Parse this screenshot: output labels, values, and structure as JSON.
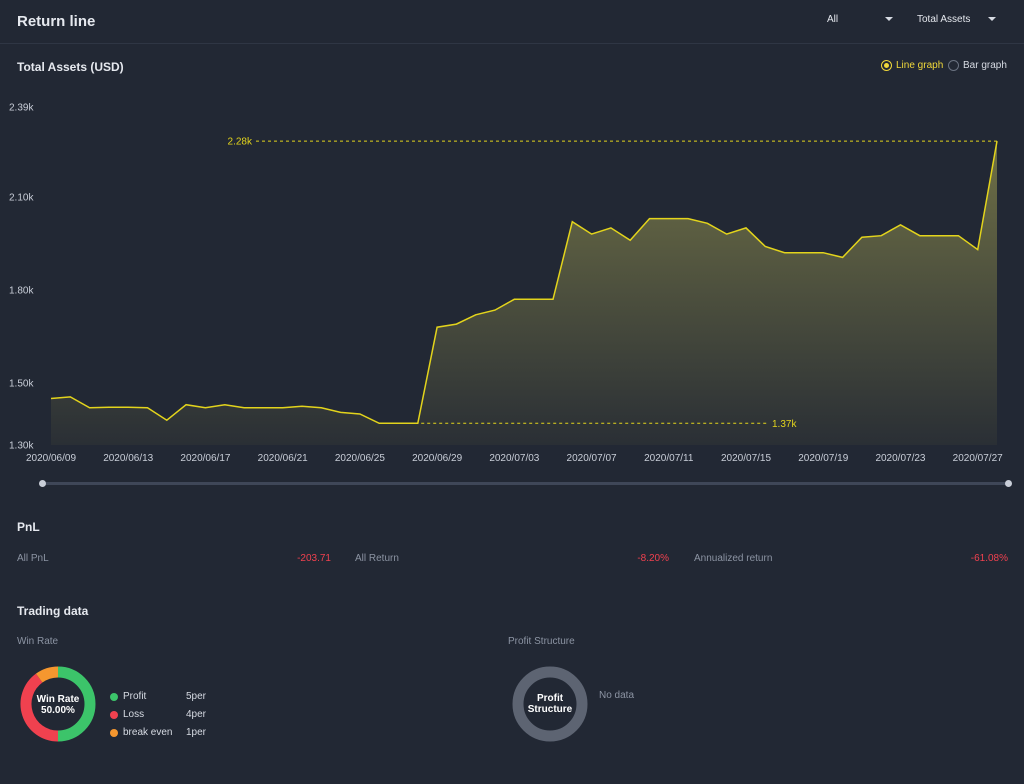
{
  "header": {
    "title": "Return line",
    "filter_period": "All",
    "filter_metric": "Total Assets"
  },
  "chart_section": {
    "title": "Total Assets (USD)",
    "view_options": [
      {
        "label": "Line graph",
        "selected": true
      },
      {
        "label": "Bar graph",
        "selected": false
      }
    ]
  },
  "chart_data": {
    "type": "area",
    "title": "",
    "xlabel": "",
    "ylabel": "",
    "ylim": [
      1.3,
      2.39
    ],
    "yticks": [
      "2.39k",
      "2.10k",
      "1.80k",
      "1.50k",
      "1.30k"
    ],
    "ytick_values": [
      2.39,
      2.1,
      1.8,
      1.5,
      1.3
    ],
    "xtick_labels": [
      "2020/06/09",
      "2020/06/13",
      "2020/06/17",
      "2020/06/21",
      "2020/06/25",
      "2020/06/29",
      "2020/07/03",
      "2020/07/07",
      "2020/07/11",
      "2020/07/15",
      "2020/07/19",
      "2020/07/23",
      "2020/07/27"
    ],
    "x": [
      "2020/06/09",
      "2020/06/10",
      "2020/06/11",
      "2020/06/12",
      "2020/06/13",
      "2020/06/14",
      "2020/06/15",
      "2020/06/16",
      "2020/06/17",
      "2020/06/18",
      "2020/06/19",
      "2020/06/20",
      "2020/06/21",
      "2020/06/22",
      "2020/06/23",
      "2020/06/24",
      "2020/06/25",
      "2020/06/26",
      "2020/06/27",
      "2020/06/28",
      "2020/06/29",
      "2020/06/30",
      "2020/07/01",
      "2020/07/02",
      "2020/07/03",
      "2020/07/04",
      "2020/07/05",
      "2020/07/06",
      "2020/07/07",
      "2020/07/08",
      "2020/07/09",
      "2020/07/10",
      "2020/07/11",
      "2020/07/12",
      "2020/07/13",
      "2020/07/14",
      "2020/07/15",
      "2020/07/16",
      "2020/07/17",
      "2020/07/18",
      "2020/07/19",
      "2020/07/20",
      "2020/07/21",
      "2020/07/22",
      "2020/07/23",
      "2020/07/24",
      "2020/07/25",
      "2020/07/26",
      "2020/07/27",
      "2020/07/28"
    ],
    "series": [
      {
        "values": [
          1.45,
          1.455,
          1.42,
          1.422,
          1.422,
          1.42,
          1.38,
          1.43,
          1.42,
          1.43,
          1.42,
          1.42,
          1.42,
          1.425,
          1.42,
          1.405,
          1.4,
          1.37,
          1.37,
          1.37,
          1.68,
          1.69,
          1.72,
          1.735,
          1.77,
          1.77,
          1.77,
          2.02,
          1.98,
          2.0,
          1.96,
          2.03,
          2.03,
          2.03,
          2.015,
          1.98,
          2.0,
          1.94,
          1.92,
          1.92,
          1.92,
          1.905,
          1.97,
          1.975,
          2.01,
          1.975,
          1.975,
          1.975,
          1.93,
          2.28
        ]
      }
    ],
    "max_marker": {
      "value": 2.28,
      "label": "2.28k"
    },
    "min_marker": {
      "value": 1.37,
      "label": "1.37k"
    },
    "line_color": "#e3d41c",
    "grid": false
  },
  "pnl": {
    "title": "PnL",
    "items": [
      {
        "label": "All PnL",
        "value": "-203.71"
      },
      {
        "label": "All Return",
        "value": "-8.20%"
      },
      {
        "label": "Annualized return",
        "value": "-61.08%"
      }
    ]
  },
  "trading": {
    "title": "Trading data",
    "win_rate": {
      "label": "Win Rate",
      "center_title": "Win Rate",
      "center_value": "50.00%",
      "legend": [
        {
          "label": "Profit",
          "count": "5per",
          "color": "#3cc46a",
          "fraction": 0.5
        },
        {
          "label": "Loss",
          "count": "4per",
          "color": "#f0414f",
          "fraction": 0.4
        },
        {
          "label": "break even",
          "count": "1per",
          "color": "#f5972f",
          "fraction": 0.1
        }
      ]
    },
    "profit_structure": {
      "label": "Profit Structure",
      "center_line1": "Profit",
      "center_line2": "Structure",
      "empty_text": "No data"
    }
  },
  "colors": {
    "background": "#222834",
    "accent_yellow": "#f0d83a",
    "negative": "#f0414f",
    "positive": "#3cc46a",
    "neutral": "#f5972f"
  }
}
